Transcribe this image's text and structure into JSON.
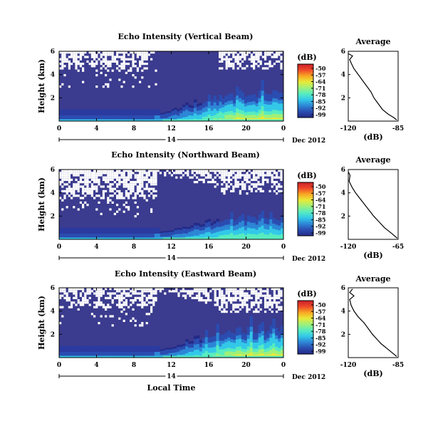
{
  "figure": {
    "x_label": "Local Time",
    "date_day": "14",
    "date_label": "Dec 2012",
    "y_label": "Height (km)",
    "colorbar_unit": "(dB)",
    "average_title": "Average",
    "average_xlabel": "(dB)"
  },
  "colors": {
    "background_fill": "#3b3b8f",
    "missing": "#ffffff",
    "colormap": [
      "#232a86",
      "#2b4cb0",
      "#2d86d6",
      "#33c8e8",
      "#57ecc0",
      "#9ef07a",
      "#e8ea38",
      "#f9a823",
      "#f0492a",
      "#c8202a"
    ]
  },
  "chart_data": [
    {
      "type": "heatmap",
      "title": "Echo Intensity (Vertical Beam)",
      "xlabel": "Local Time",
      "ylabel": "Height (km)",
      "x_ticks": [
        "0",
        "4",
        "8",
        "12",
        "16",
        "20",
        "0"
      ],
      "xlim": [
        0,
        24
      ],
      "y_ticks": [
        "2",
        "4",
        "6"
      ],
      "ylim": [
        0,
        6
      ],
      "colorbar": {
        "unit": "(dB)",
        "ticks": [
          "-50",
          "-57",
          "-64",
          "-71",
          "-78",
          "-85",
          "-92",
          "-99"
        ]
      },
      "description": "Low-level enhanced echoes (cyan/green) below about 1.5 km after 12 LT, with convective plumes up to ~3.5 km; missing data (white) above ~4 km before 11 LT and after 18 LT",
      "average": {
        "xlim": [
          -120,
          -85
        ],
        "x_ticks": [
          "-120",
          "-85"
        ],
        "y_ticks": [
          "2",
          "4",
          "6"
        ],
        "profile": [
          {
            "h": 0.1,
            "db": -86
          },
          {
            "h": 0.3,
            "db": -88
          },
          {
            "h": 0.6,
            "db": -92
          },
          {
            "h": 1.0,
            "db": -96
          },
          {
            "h": 1.5,
            "db": -99
          },
          {
            "h": 2.0,
            "db": -102
          },
          {
            "h": 2.5,
            "db": -104
          },
          {
            "h": 3.0,
            "db": -107
          },
          {
            "h": 3.5,
            "db": -110
          },
          {
            "h": 4.0,
            "db": -113
          },
          {
            "h": 4.5,
            "db": -116
          },
          {
            "h": 5.0,
            "db": -118
          },
          {
            "h": 5.3,
            "db": -119
          },
          {
            "h": 5.6,
            "db": -117
          },
          {
            "h": 5.8,
            "db": -120
          }
        ]
      }
    },
    {
      "type": "heatmap",
      "title": "Echo Intensity (Northward Beam)",
      "xlabel": "Local Time",
      "ylabel": "Height (km)",
      "x_ticks": [
        "0",
        "4",
        "8",
        "12",
        "16",
        "20",
        "0"
      ],
      "xlim": [
        0,
        24
      ],
      "y_ticks": [
        "2",
        "4",
        "6"
      ],
      "ylim": [
        0,
        6
      ],
      "colorbar": {
        "unit": "(dB)",
        "ticks": [
          "-50",
          "-57",
          "-64",
          "-71",
          "-78",
          "-85",
          "-92",
          "-99"
        ]
      },
      "description": "Similar structure to vertical beam, weaker low-level enhancement; broad missing-data region above ~3.5 km",
      "average": {
        "xlim": [
          -120,
          -65
        ],
        "x_ticks": [
          "-120",
          "-65"
        ],
        "y_ticks": [
          "2",
          "4",
          "6"
        ],
        "profile": [
          {
            "h": 0.1,
            "db": -66
          },
          {
            "h": 0.5,
            "db": -72
          },
          {
            "h": 1.0,
            "db": -80
          },
          {
            "h": 1.5,
            "db": -86
          },
          {
            "h": 2.0,
            "db": -92
          },
          {
            "h": 2.5,
            "db": -97
          },
          {
            "h": 3.0,
            "db": -102
          },
          {
            "h": 3.5,
            "db": -107
          },
          {
            "h": 4.0,
            "db": -112
          },
          {
            "h": 4.5,
            "db": -116
          },
          {
            "h": 5.0,
            "db": -119
          },
          {
            "h": 5.5,
            "db": -118
          },
          {
            "h": 5.8,
            "db": -120
          }
        ]
      }
    },
    {
      "type": "heatmap",
      "title": "Echo Intensity (Eastward Beam)",
      "xlabel": "Local Time",
      "ylabel": "Height (km)",
      "x_ticks": [
        "0",
        "4",
        "8",
        "12",
        "16",
        "20",
        "0"
      ],
      "xlim": [
        0,
        24
      ],
      "y_ticks": [
        "2",
        "4",
        "6"
      ],
      "ylim": [
        0,
        6
      ],
      "colorbar": {
        "unit": "(dB)",
        "ticks": [
          "-50",
          "-57",
          "-64",
          "-71",
          "-78",
          "-85",
          "-92",
          "-99"
        ]
      },
      "description": "Low-level enhancement after 12 LT with plumes to ~3.5 km; missing data above ~4 km",
      "average": {
        "xlim": [
          -120,
          -85
        ],
        "x_ticks": [
          "-120",
          "-85"
        ],
        "y_ticks": [
          "2",
          "4",
          "6"
        ],
        "profile": [
          {
            "h": 0.1,
            "db": -86
          },
          {
            "h": 0.4,
            "db": -89
          },
          {
            "h": 0.8,
            "db": -93
          },
          {
            "h": 1.2,
            "db": -97
          },
          {
            "h": 1.6,
            "db": -100
          },
          {
            "h": 2.0,
            "db": -103
          },
          {
            "h": 2.5,
            "db": -106
          },
          {
            "h": 3.0,
            "db": -109
          },
          {
            "h": 3.5,
            "db": -113
          },
          {
            "h": 4.0,
            "db": -116
          },
          {
            "h": 4.5,
            "db": -118
          },
          {
            "h": 5.0,
            "db": -119
          },
          {
            "h": 5.3,
            "db": -116
          },
          {
            "h": 5.6,
            "db": -119
          },
          {
            "h": 5.9,
            "db": -117
          }
        ]
      }
    }
  ]
}
